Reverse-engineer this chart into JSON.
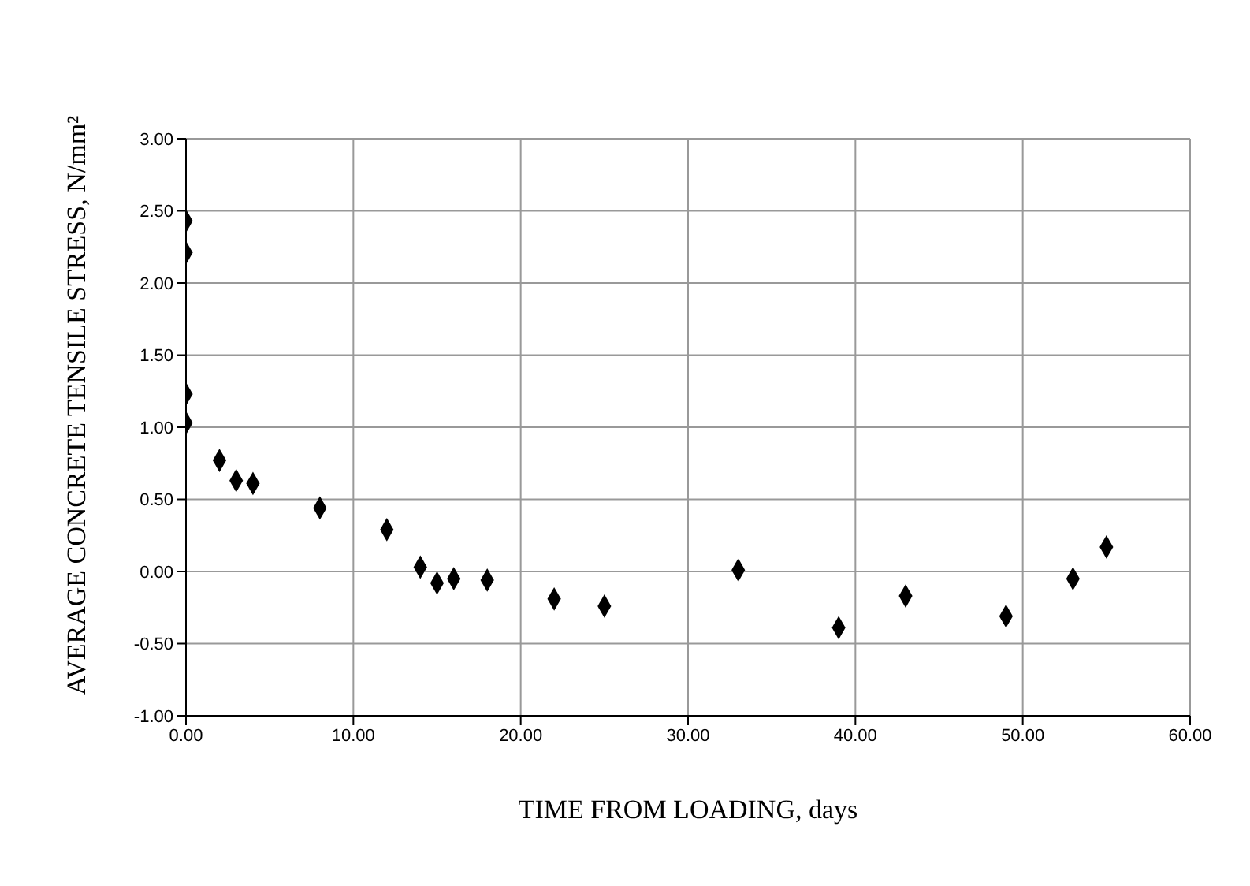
{
  "chart_data": {
    "type": "scatter",
    "xlabel": "TIME FROM LOADING, days",
    "ylabel": "AVERAGE CONCRETE TENSILE STRESS, N/mm²",
    "x": [
      0,
      0,
      0,
      0,
      2,
      3,
      4,
      8,
      12,
      14,
      15,
      16,
      18,
      22,
      25,
      33,
      39,
      43,
      49,
      53,
      55
    ],
    "series": [
      {
        "color": "#000000",
        "values": [
          2.43,
          2.21,
          1.23,
          1.03,
          0.77,
          0.63,
          0.61,
          0.44,
          0.29,
          0.03,
          -0.08,
          -0.05,
          -0.06,
          -0.19,
          -0.24,
          0.01,
          -0.39,
          -0.17,
          -0.31,
          -0.05,
          0.17
        ]
      }
    ],
    "xlim": [
      0,
      60
    ],
    "xticks": [
      {
        "value": 0,
        "label": "0.00"
      },
      {
        "value": 10,
        "label": "10.00"
      },
      {
        "value": 20,
        "label": "20.00"
      },
      {
        "value": 30,
        "label": "30.00"
      },
      {
        "value": 40,
        "label": "40.00"
      },
      {
        "value": 50,
        "label": "50.00"
      },
      {
        "value": 60,
        "label": "60.00"
      }
    ],
    "ylim": [
      -1,
      3
    ],
    "yticks": [
      {
        "value": -1,
        "label": "-1.00"
      },
      {
        "value": -0.5,
        "label": "-0.50"
      },
      {
        "value": 0,
        "label": "0.00"
      },
      {
        "value": 0.5,
        "label": "0.50"
      },
      {
        "value": 1,
        "label": "1.00"
      },
      {
        "value": 1.5,
        "label": "1.50"
      },
      {
        "value": 2,
        "label": "2.00"
      },
      {
        "value": 2.5,
        "label": "2.50"
      },
      {
        "value": 3,
        "label": "3.00"
      }
    ],
    "grid": true,
    "marker": "diamond",
    "legend": false
  }
}
